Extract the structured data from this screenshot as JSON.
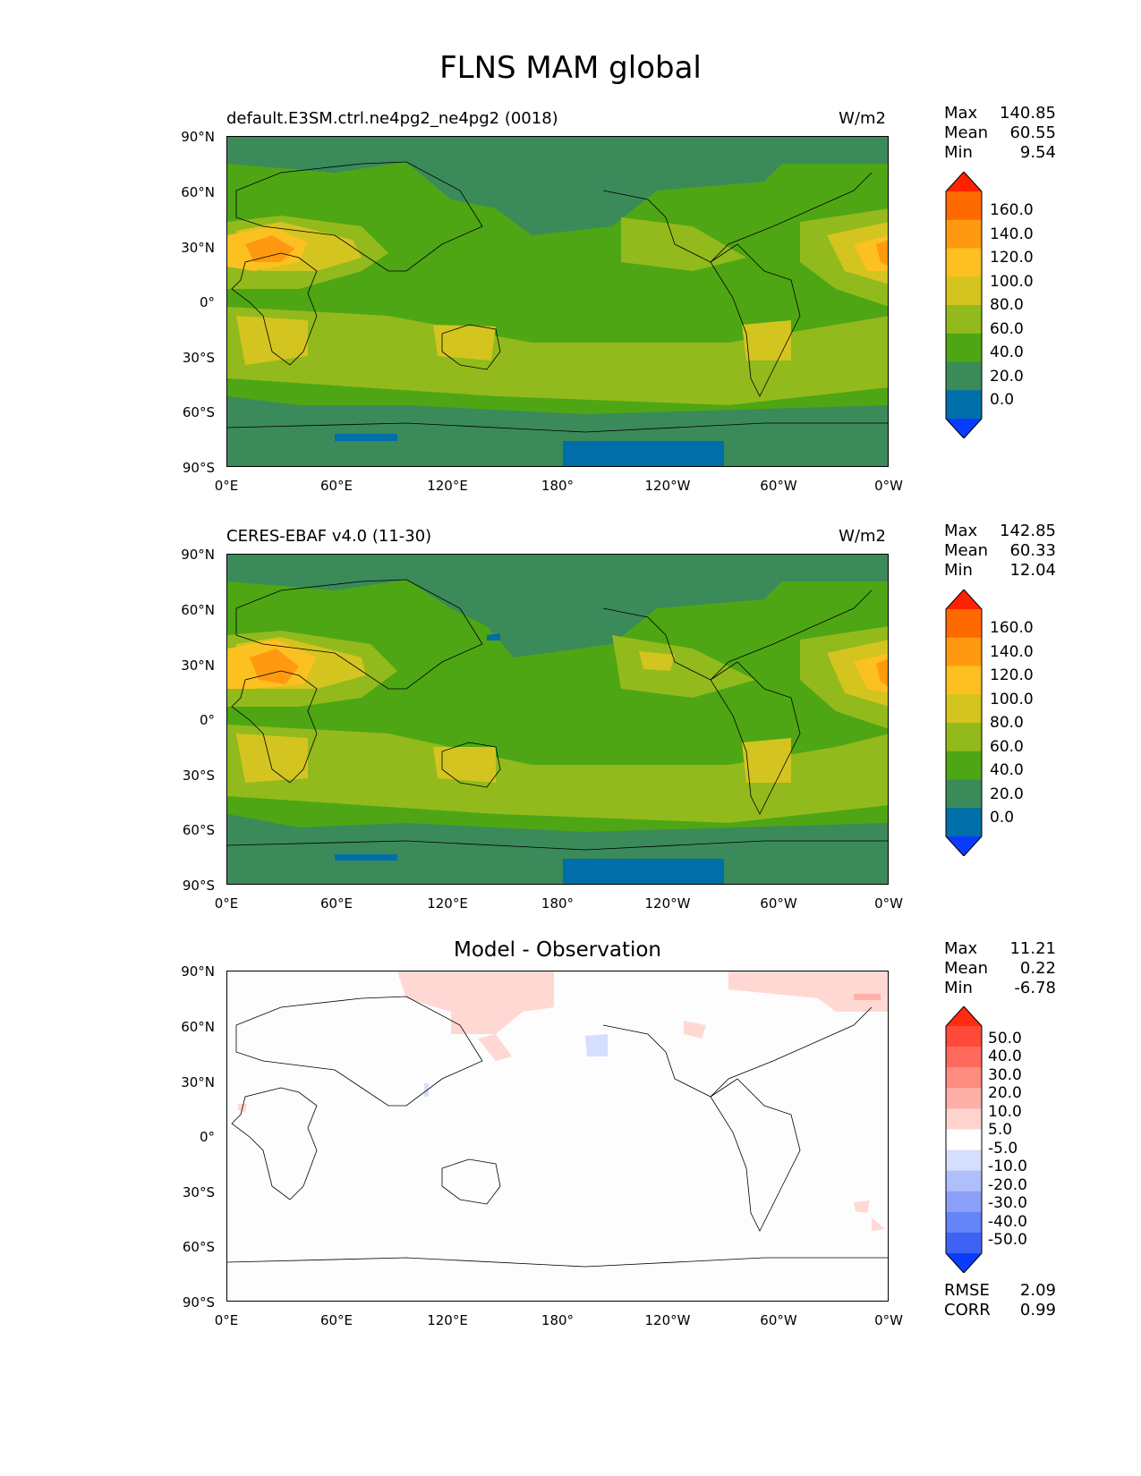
{
  "figure_title": "FLNS MAM global",
  "x_tick_labels": [
    "0°E",
    "60°E",
    "120°E",
    "180°",
    "120°W",
    "60°W",
    "0°W"
  ],
  "y_tick_labels": [
    "90°N",
    "60°N",
    "30°N",
    "0°",
    "30°S",
    "60°S",
    "90°S"
  ],
  "panels": [
    {
      "title": "default.E3SM.ctrl.ne4pg2_ne4pg2 (0018)",
      "units": "W/m2",
      "stats": [
        {
          "label": "Max",
          "value": "140.85"
        },
        {
          "label": "Mean",
          "value": "60.55"
        },
        {
          "label": "Min",
          "value": "9.54"
        }
      ],
      "colorbar": {
        "labels": [
          "160.0",
          "140.0",
          "120.0",
          "100.0",
          "80.0",
          "60.0",
          "40.0",
          "20.0",
          "0.0"
        ],
        "colors": [
          "#ff2200",
          "#ff6a00",
          "#ff9a10",
          "#fcc020",
          "#d4c420",
          "#92ba1c",
          "#4ea614",
          "#3b8a5a",
          "#006ea8",
          "#0a3cff"
        ]
      }
    },
    {
      "title": "CERES-EBAF v4.0 (11-30)",
      "units": "W/m2",
      "stats": [
        {
          "label": "Max",
          "value": "142.85"
        },
        {
          "label": "Mean",
          "value": "60.33"
        },
        {
          "label": "Min",
          "value": "12.04"
        }
      ],
      "colorbar": {
        "labels": [
          "160.0",
          "140.0",
          "120.0",
          "100.0",
          "80.0",
          "60.0",
          "40.0",
          "20.0",
          "0.0"
        ],
        "colors": [
          "#ff2200",
          "#ff6a00",
          "#ff9a10",
          "#fcc020",
          "#d4c420",
          "#92ba1c",
          "#4ea614",
          "#3b8a5a",
          "#006ea8",
          "#0a3cff"
        ]
      }
    },
    {
      "title": "Model - Observation",
      "stats": [
        {
          "label": "Max",
          "value": "11.21"
        },
        {
          "label": "Mean",
          "value": "0.22"
        },
        {
          "label": "Min",
          "value": "-6.78"
        }
      ],
      "colorbar": {
        "labels": [
          "50.0",
          "40.0",
          "30.0",
          "20.0",
          "10.0",
          "5.0",
          "-5.0",
          "-10.0",
          "-20.0",
          "-30.0",
          "-40.0",
          "-50.0"
        ],
        "colors": [
          "#ff2a10",
          "#ff4a3a",
          "#ff6a5c",
          "#ff8c80",
          "#ffb0a6",
          "#ffd4ce",
          "#ffffff",
          "#d6defe",
          "#b0bffc",
          "#8ca0fa",
          "#6484f8",
          "#3e62f6",
          "#0a3cff"
        ]
      },
      "metrics": [
        {
          "label": "RMSE",
          "value": "2.09"
        },
        {
          "label": "CORR",
          "value": "0.99"
        }
      ]
    }
  ],
  "chart_data": [
    {
      "type": "heatmap",
      "title": "default.E3SM.ctrl.ne4pg2_ne4pg2 (0018)",
      "units": "W/m2",
      "xlim": [
        0,
        360
      ],
      "ylim": [
        -90,
        90
      ],
      "levels": [
        0,
        20,
        40,
        60,
        80,
        100,
        120,
        140,
        160
      ],
      "max": 140.85,
      "mean": 60.55,
      "min": 9.54
    },
    {
      "type": "heatmap",
      "title": "CERES-EBAF v4.0 (11-30)",
      "units": "W/m2",
      "xlim": [
        0,
        360
      ],
      "ylim": [
        -90,
        90
      ],
      "levels": [
        0,
        20,
        40,
        60,
        80,
        100,
        120,
        140,
        160
      ],
      "max": 142.85,
      "mean": 60.33,
      "min": 12.04
    },
    {
      "type": "heatmap",
      "title": "Model - Observation",
      "xlim": [
        0,
        360
      ],
      "ylim": [
        -90,
        90
      ],
      "levels": [
        -50,
        -40,
        -30,
        -20,
        -10,
        -5,
        5,
        10,
        20,
        30,
        40,
        50
      ],
      "max": 11.21,
      "mean": 0.22,
      "min": -6.78,
      "rmse": 2.09,
      "corr": 0.99
    }
  ]
}
